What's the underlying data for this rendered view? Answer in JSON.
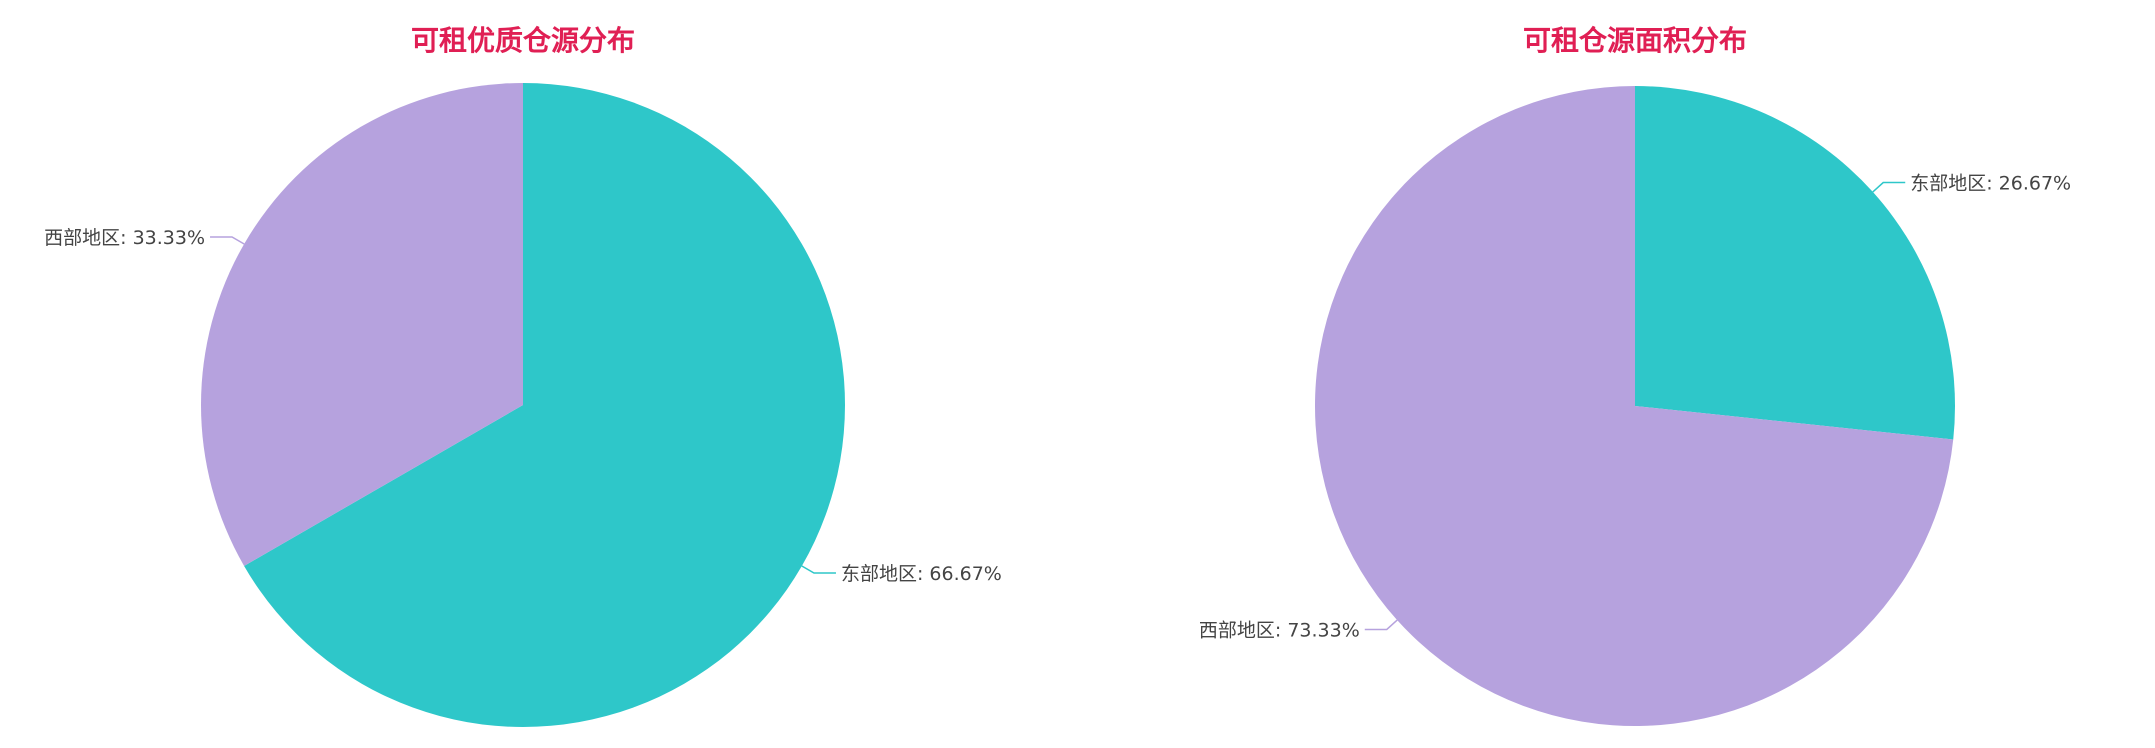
{
  "colors": {
    "title": "#e01f54",
    "east": "#2ec7c9",
    "west": "#b6a2de"
  },
  "chart_data": [
    {
      "type": "pie",
      "title": "可租优质仓源分布",
      "slices": [
        {
          "name": "东部地区",
          "value": 66.67,
          "label": "东部地区: 66.67%",
          "color": "#2ec7c9"
        },
        {
          "name": "西部地区",
          "value": 33.33,
          "label": "西部地区: 33.33%",
          "color": "#b6a2de"
        }
      ]
    },
    {
      "type": "pie",
      "title": "可租仓源面积分布",
      "slices": [
        {
          "name": "东部地区",
          "value": 26.67,
          "label": "东部地区: 26.67%",
          "color": "#2ec7c9"
        },
        {
          "name": "西部地区",
          "value": 73.33,
          "label": "西部地区: 73.33%",
          "color": "#b6a2de"
        }
      ]
    }
  ]
}
